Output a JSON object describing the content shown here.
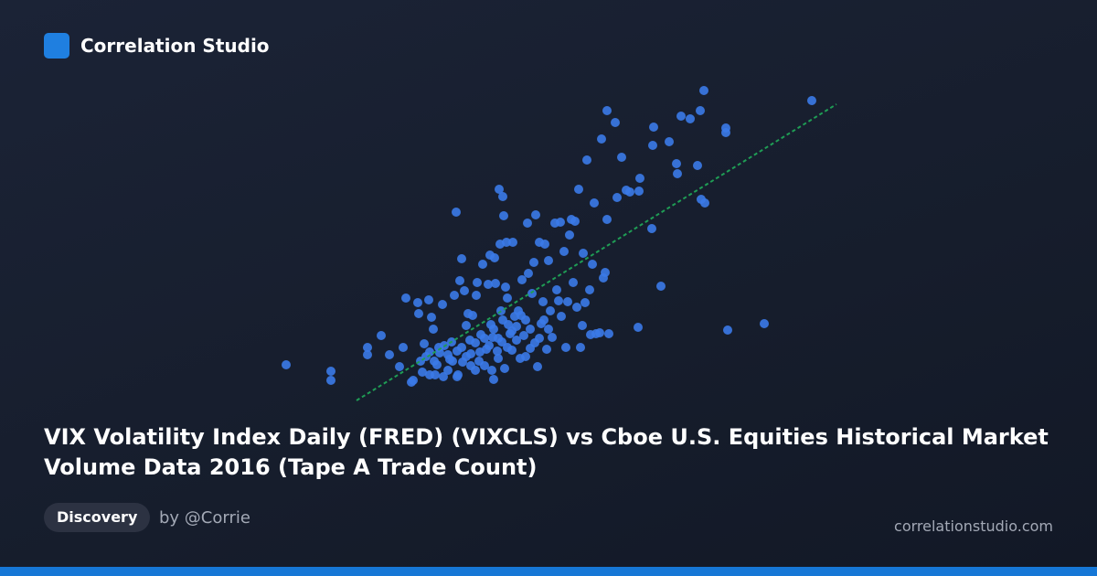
{
  "brand": "Correlation Studio",
  "badge": "Discovery",
  "author": "by @Corrie",
  "site": "correlationstudio.com",
  "chart_data": {
    "type": "scatter",
    "title": "VIX Volatility Index Daily (FRED) (VIXCLS) vs Cboe U.S. Equities Historical Market Volume Data 2016 (Tape A Trade Count)",
    "color": "#3b7ae8",
    "xlim": [
      0,
      630
    ],
    "ylim": [
      0,
      355
    ],
    "x": [
      13,
      62,
      62,
      102,
      102,
      117,
      126,
      137,
      141,
      144,
      150,
      152,
      157,
      158,
      162,
      164,
      166,
      169,
      172,
      174,
      176,
      178,
      181,
      184,
      186,
      190,
      192,
      194,
      197,
      199,
      200,
      201,
      203,
      205,
      206,
      208,
      210,
      212,
      214,
      215,
      217,
      220,
      221,
      222,
      224,
      226,
      228,
      230,
      232,
      234,
      236,
      237,
      239,
      240,
      241,
      242,
      244,
      245,
      246,
      247,
      248,
      249,
      250,
      251,
      252,
      253,
      254,
      255,
      256,
      258,
      260,
      261,
      263,
      265,
      267,
      269,
      271,
      273,
      275,
      277,
      278,
      280,
      282,
      284,
      286,
      288,
      290,
      292,
      294,
      296,
      298,
      300,
      302,
      304,
      307,
      309,
      311,
      313,
      314,
      317,
      319,
      321,
      323,
      325,
      327,
      329,
      331,
      333,
      335,
      337,
      338,
      340,
      342,
      345,
      346,
      348,
      350,
      352,
      356,
      358,
      360,
      362,
      364,
      364,
      366,
      373,
      375,
      380,
      385,
      389,
      398,
      399,
      400,
      413,
      414,
      415,
      423,
      432,
      440,
      441,
      445,
      455,
      463,
      466,
      467,
      471,
      470,
      494,
      494,
      496,
      536,
      588,
      170,
      180,
      190,
      195,
      205,
      210,
      215,
      225,
      230,
      235,
      240,
      245,
      250,
      255,
      260,
      265,
      270,
      275,
      280,
      285,
      290,
      295,
      300,
      170,
      185,
      200,
      220,
      238,
      175,
      160
    ],
    "values": [
      46,
      39,
      29,
      65,
      57,
      78,
      57,
      44,
      65,
      119,
      27,
      29,
      114,
      102,
      38,
      69,
      55,
      117,
      98,
      85,
      35,
      46,
      59,
      112,
      67,
      40,
      52,
      71,
      122,
      213,
      61,
      35,
      138,
      162,
      49,
      127,
      89,
      102,
      73,
      58,
      100,
      70,
      122,
      136,
      50,
      79,
      156,
      45,
      63,
      134,
      166,
      90,
      76,
      30,
      163,
      135,
      61,
      53,
      238,
      178,
      105,
      71,
      230,
      209,
      42,
      131,
      180,
      119,
      90,
      80,
      62,
      180,
      99,
      73,
      105,
      53,
      139,
      78,
      95,
      201,
      146,
      64,
      124,
      158,
      210,
      44,
      180,
      91,
      115,
      178,
      63,
      160,
      105,
      76,
      201,
      128,
      116,
      202,
      99,
      170,
      65,
      115,
      188,
      205,
      136,
      203,
      109,
      238,
      65,
      89,
      168,
      114,
      270,
      128,
      79,
      156,
      223,
      80,
      81,
      293,
      141,
      147,
      324,
      205,
      80,
      311,
      229,
      273,
      237,
      235,
      87,
      236,
      250,
      195,
      286,
      306,
      132,
      290,
      266,
      255,
      318,
      315,
      264,
      324,
      227,
      223,
      346,
      305,
      300,
      84,
      91,
      335,
      60,
      65,
      57,
      50,
      65,
      55,
      45,
      60,
      75,
      67,
      85,
      75,
      95,
      65,
      83,
      88,
      100,
      55,
      85,
      70,
      75,
      95,
      85,
      35,
      33,
      33,
      40,
      40,
      50,
      50
    ],
    "trendline": {
      "color": "#1f9d55",
      "x": [
        90,
        615
      ],
      "y": [
        7,
        331
      ]
    }
  }
}
